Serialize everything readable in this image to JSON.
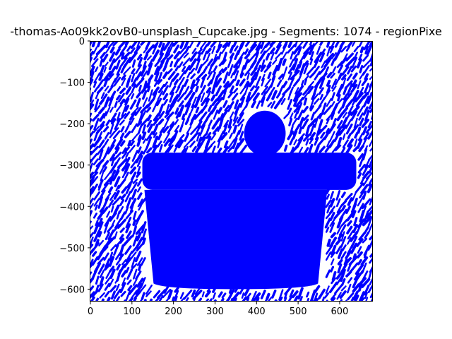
{
  "chart_data": {
    "type": "scatter",
    "title": "-thomas-Ao09kk2ovB0-unsplash_Cupcake.jpg - Segments: 1074 - regionPixe",
    "xlabel": "",
    "ylabel": "",
    "xlim": [
      0,
      680
    ],
    "ylim": [
      -630,
      0
    ],
    "x_ticks": [
      0,
      100,
      200,
      300,
      400,
      500,
      600
    ],
    "x_tick_labels": [
      "0",
      "100",
      "200",
      "300",
      "400",
      "500",
      "600"
    ],
    "y_ticks": [
      0,
      -100,
      -200,
      -300,
      -400,
      -500,
      -600
    ],
    "y_tick_labels": [
      "0",
      "−100",
      "−200",
      "−300",
      "−400",
      "−500",
      "−600"
    ],
    "grid": false,
    "series": [
      {
        "color": "#0000ff",
        "mark": "short oriented line segments",
        "segment_count": 1074,
        "dense_regions": [
          {
            "shape": "cupcake wrapper",
            "x_range": [
              130,
              570
            ],
            "y_range": [
              -600,
              -360
            ]
          },
          {
            "shape": "cupcake top",
            "x_range": [
              125,
              640
            ],
            "y_range": [
              -360,
              -270
            ]
          },
          {
            "shape": "topping",
            "x_range": [
              370,
              470
            ],
            "y_range": [
              -270,
              -160
            ]
          }
        ]
      }
    ]
  }
}
